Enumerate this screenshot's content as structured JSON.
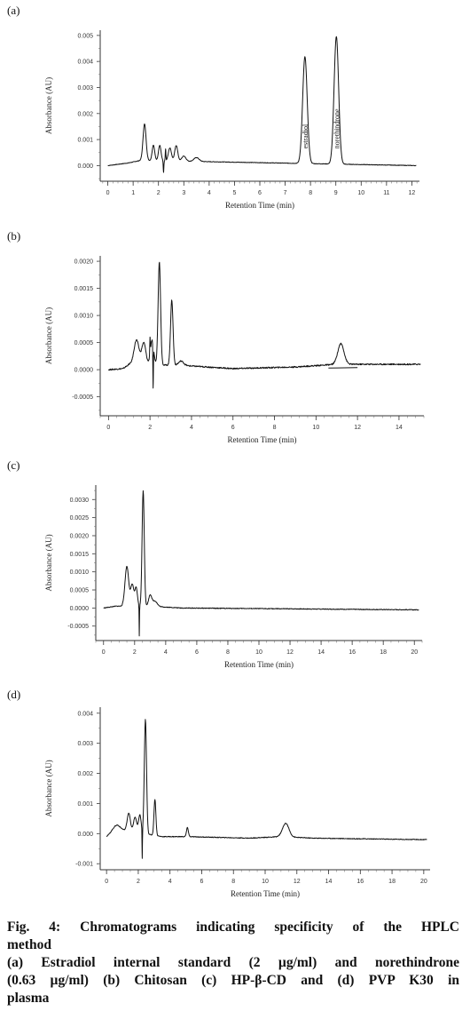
{
  "chart_data": [
    {
      "type": "line",
      "panel_label": "(a)",
      "xlabel": "Retention Time (min)",
      "ylabel": "Absorbance (AU)",
      "xlim": [
        -0.3,
        12.3
      ],
      "ylim": [
        -0.0006,
        0.0052
      ],
      "xticks": [
        0,
        1,
        2,
        3,
        4,
        5,
        6,
        7,
        8,
        9,
        10,
        11,
        12
      ],
      "yticks": [
        0.0,
        0.001,
        0.002,
        0.003,
        0.004,
        0.005
      ],
      "ytick_labels": [
        "0.000",
        "0.001",
        "0.002",
        "0.003",
        "0.004",
        "0.005"
      ],
      "x_minor_step": 0.2,
      "baseline": [
        [
          0,
          0
        ],
        [
          0.8,
          0.0001
        ],
        [
          1.3,
          0.0002
        ],
        [
          12.2,
          0.0
        ]
      ],
      "peaks": [
        [
          1.45,
          0.0014,
          0.06
        ],
        [
          1.8,
          0.0006,
          0.05
        ],
        [
          2.05,
          0.0006,
          0.05
        ],
        [
          2.45,
          0.0005,
          0.06
        ],
        [
          2.7,
          0.0006,
          0.06
        ],
        [
          3.0,
          0.0002,
          0.08
        ],
        [
          3.5,
          0.00015,
          0.1
        ],
        [
          7.78,
          0.0041,
          0.09
        ],
        [
          9.02,
          0.0049,
          0.09
        ]
      ],
      "spikes": [
        [
          2.2,
          -0.00045
        ],
        [
          2.28,
          0.00045
        ]
      ],
      "noise": 1e-05,
      "annotations": [
        {
          "text": "estradiol",
          "x": 7.78
        },
        {
          "text": "norethindrone",
          "x": 9.02
        }
      ]
    },
    {
      "type": "line",
      "panel_label": "(b)",
      "xlabel": "Retention Time (min)",
      "ylabel": "Absorbance (AU)",
      "xlim": [
        -0.4,
        15.2
      ],
      "ylim": [
        -0.00085,
        0.0021
      ],
      "xticks": [
        0,
        2,
        4,
        6,
        8,
        10,
        12,
        14
      ],
      "yticks": [
        -0.0005,
        0.0,
        0.0005,
        0.001,
        0.0015,
        0.002
      ],
      "ytick_labels": [
        "-0.0005",
        "0.0000",
        "0.0005",
        "0.0010",
        "0.0015",
        "0.0020"
      ],
      "x_minor_step": 0.4,
      "baseline": [
        [
          0,
          0
        ],
        [
          0.7,
          2e-05
        ],
        [
          1.0,
          0.0001
        ],
        [
          3.5,
          8e-05
        ],
        [
          6,
          2e-05
        ],
        [
          9,
          5e-05
        ],
        [
          11,
          0.0001
        ],
        [
          15,
          0.0001
        ]
      ],
      "peaks": [
        [
          1.35,
          0.00045,
          0.12
        ],
        [
          1.7,
          0.0004,
          0.1
        ],
        [
          2.1,
          0.00045,
          0.08
        ],
        [
          2.45,
          0.0019,
          0.06
        ],
        [
          3.05,
          0.0012,
          0.06
        ],
        [
          3.5,
          8e-05,
          0.12
        ],
        [
          11.2,
          0.00038,
          0.15
        ]
      ],
      "spikes": [
        [
          2.15,
          -0.0008
        ],
        [
          2.0,
          0.0003
        ]
      ],
      "noise": 1.2e-05,
      "annotations": []
    },
    {
      "type": "line",
      "panel_label": "(c)",
      "xlabel": "Retention Time (min)",
      "ylabel": "Absorbance (AU)",
      "xlim": [
        -0.5,
        20.5
      ],
      "ylim": [
        -0.0009,
        0.0034
      ],
      "xticks": [
        0,
        2,
        4,
        6,
        8,
        10,
        12,
        14,
        16,
        18,
        20
      ],
      "yticks": [
        -0.0005,
        0.0,
        0.0005,
        0.001,
        0.0015,
        0.002,
        0.0025,
        0.003
      ],
      "ytick_labels": [
        "-0.0005",
        "0.0000",
        "0.0005",
        "0.0010",
        "0.0015",
        "0.0020",
        "0.0025",
        "0.0030"
      ],
      "x_minor_step": 0.5,
      "baseline": [
        [
          0,
          0
        ],
        [
          0.8,
          5e-05
        ],
        [
          3,
          5e-05
        ],
        [
          5,
          0.0
        ],
        [
          20,
          -5e-05
        ]
      ],
      "peaks": [
        [
          1.5,
          0.0011,
          0.12
        ],
        [
          1.85,
          0.0006,
          0.1
        ],
        [
          2.1,
          0.0005,
          0.08
        ],
        [
          2.55,
          0.0032,
          0.07
        ],
        [
          3.0,
          0.0003,
          0.1
        ],
        [
          3.3,
          0.00015,
          0.15
        ]
      ],
      "spikes": [
        [
          2.3,
          -0.00085
        ]
      ],
      "noise": 1e-05,
      "annotations": []
    },
    {
      "type": "line",
      "panel_label": "(d)",
      "xlabel": "Retention Time (min)",
      "ylabel": "Absorbance (AU)",
      "xlim": [
        -0.4,
        20.4
      ],
      "ylim": [
        -0.0012,
        0.0042
      ],
      "xticks": [
        0,
        2,
        4,
        6,
        8,
        10,
        12,
        14,
        16,
        18,
        20
      ],
      "yticks": [
        -0.001,
        0.0,
        0.001,
        0.002,
        0.003,
        0.004
      ],
      "ytick_labels": [
        "-0.001",
        "0.000",
        "0.001",
        "0.002",
        "0.003",
        "0.004"
      ],
      "x_minor_step": 0.5,
      "baseline": [
        [
          0,
          -0.0001
        ],
        [
          0.7,
          0.0001
        ],
        [
          1.2,
          0.0001
        ],
        [
          3.5,
          -0.0001
        ],
        [
          5,
          -0.0001
        ],
        [
          9,
          -0.00015
        ],
        [
          11,
          -0.0001
        ],
        [
          13,
          -0.00015
        ],
        [
          20,
          -0.0002
        ]
      ],
      "peaks": [
        [
          0.6,
          0.0002,
          0.25
        ],
        [
          1.4,
          0.0006,
          0.1
        ],
        [
          1.8,
          0.0005,
          0.1
        ],
        [
          2.1,
          0.0006,
          0.08
        ],
        [
          2.45,
          0.0038,
          0.07
        ],
        [
          3.05,
          0.0012,
          0.06
        ],
        [
          5.1,
          0.0003,
          0.06
        ],
        [
          11.3,
          0.00045,
          0.2
        ]
      ],
      "spikes": [
        [
          2.25,
          -0.001
        ]
      ],
      "noise": 1.2e-05,
      "annotations": []
    }
  ],
  "caption": {
    "line1": "Fig. 4: Chromatograms indicating specificity of the HPLC",
    "line2": "method",
    "line3": "(a) Estradiol internal standard (2 µg/ml) and norethindrone",
    "line4": "(0.63 µg/ml) (b) Chitosan (c) HP-β-CD and (d) PVP K30 in",
    "line5": "plasma"
  }
}
